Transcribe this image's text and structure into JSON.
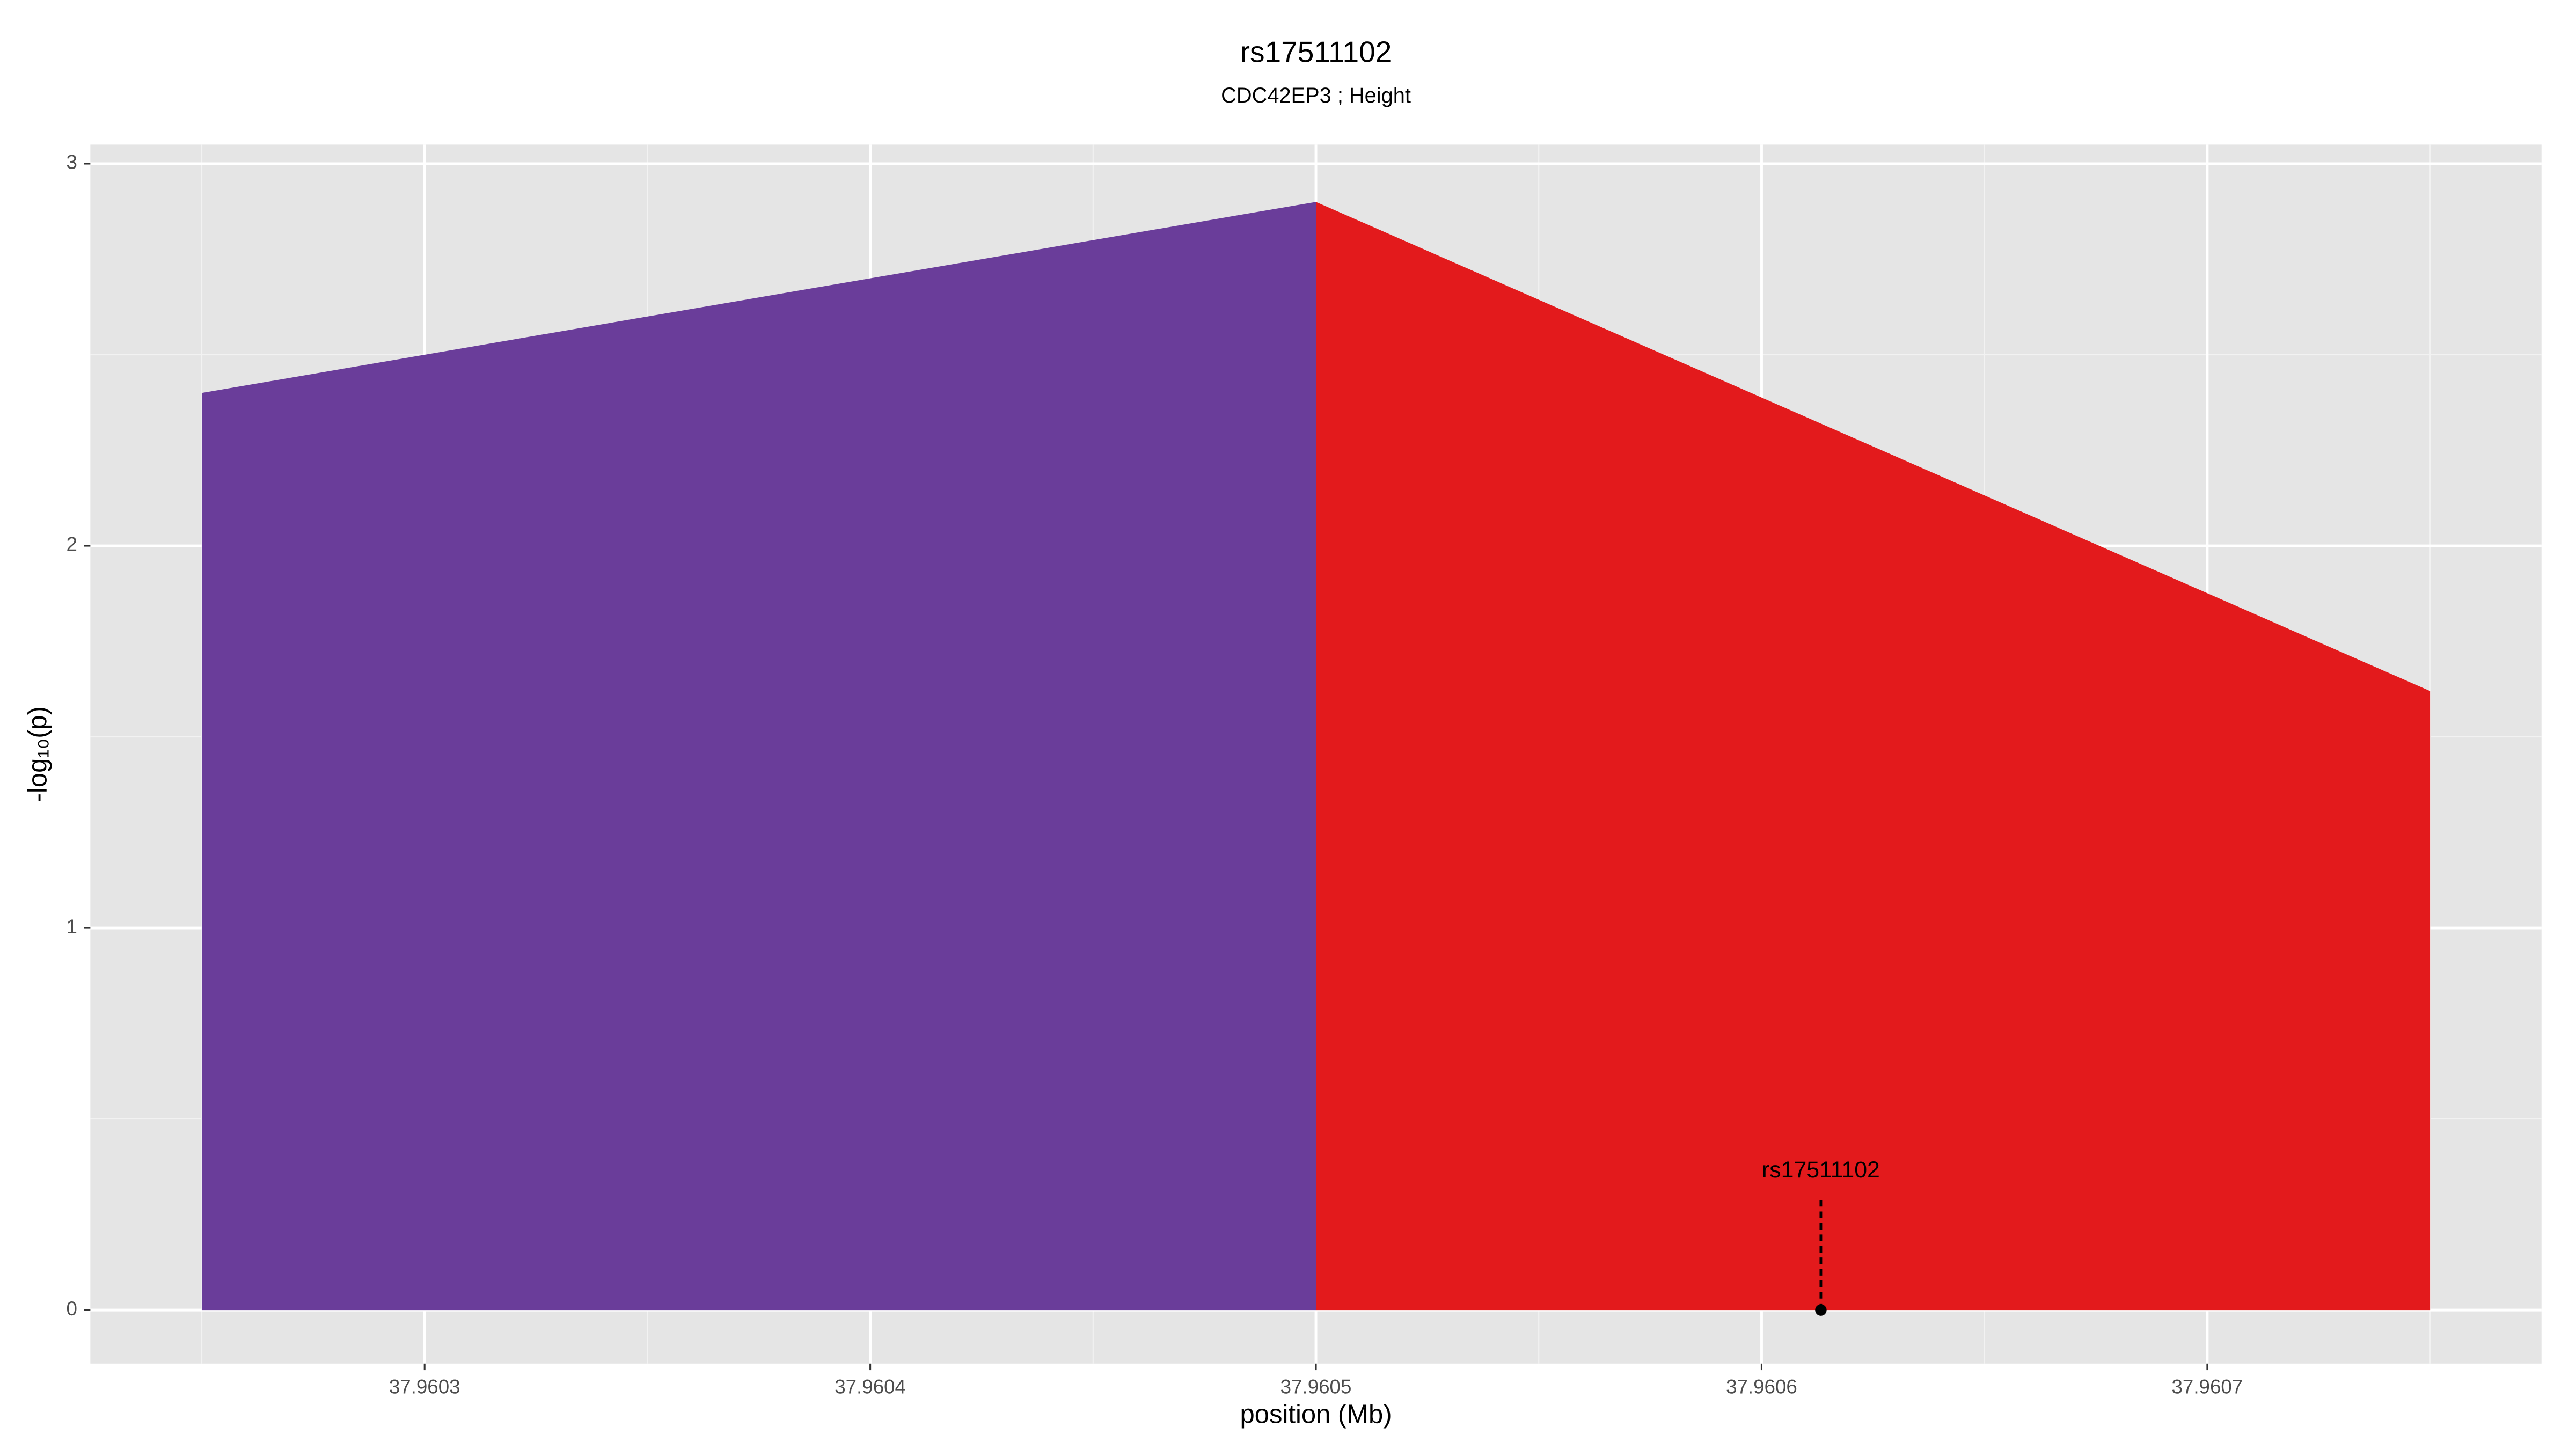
{
  "chart_data": {
    "type": "area",
    "title": "rs17511102",
    "subtitle": "CDC42EP3 ; Height",
    "x_label": "position (Mb)",
    "y_label": "-log₁₀(p)",
    "series": [
      {
        "color": "#6a3d9a",
        "x": [
          37.96025,
          37.9605
        ],
        "values": [
          2.4,
          2.9
        ]
      },
      {
        "color": "#e31a1c",
        "x": [
          37.9605,
          37.96075
        ],
        "values": [
          2.9,
          1.62
        ]
      }
    ],
    "annotation": {
      "text": "rs17511102",
      "x": 37.9606133,
      "y": 0,
      "line_top": 0.29
    },
    "xlim": [
      37.960225,
      37.960775
    ],
    "xticks": [
      37.9603,
      37.9604,
      37.9605,
      37.9606,
      37.9607
    ],
    "ylim": [
      -0.14,
      3.05
    ],
    "yticks": [
      0,
      1,
      2,
      3
    ],
    "grid": true
  }
}
